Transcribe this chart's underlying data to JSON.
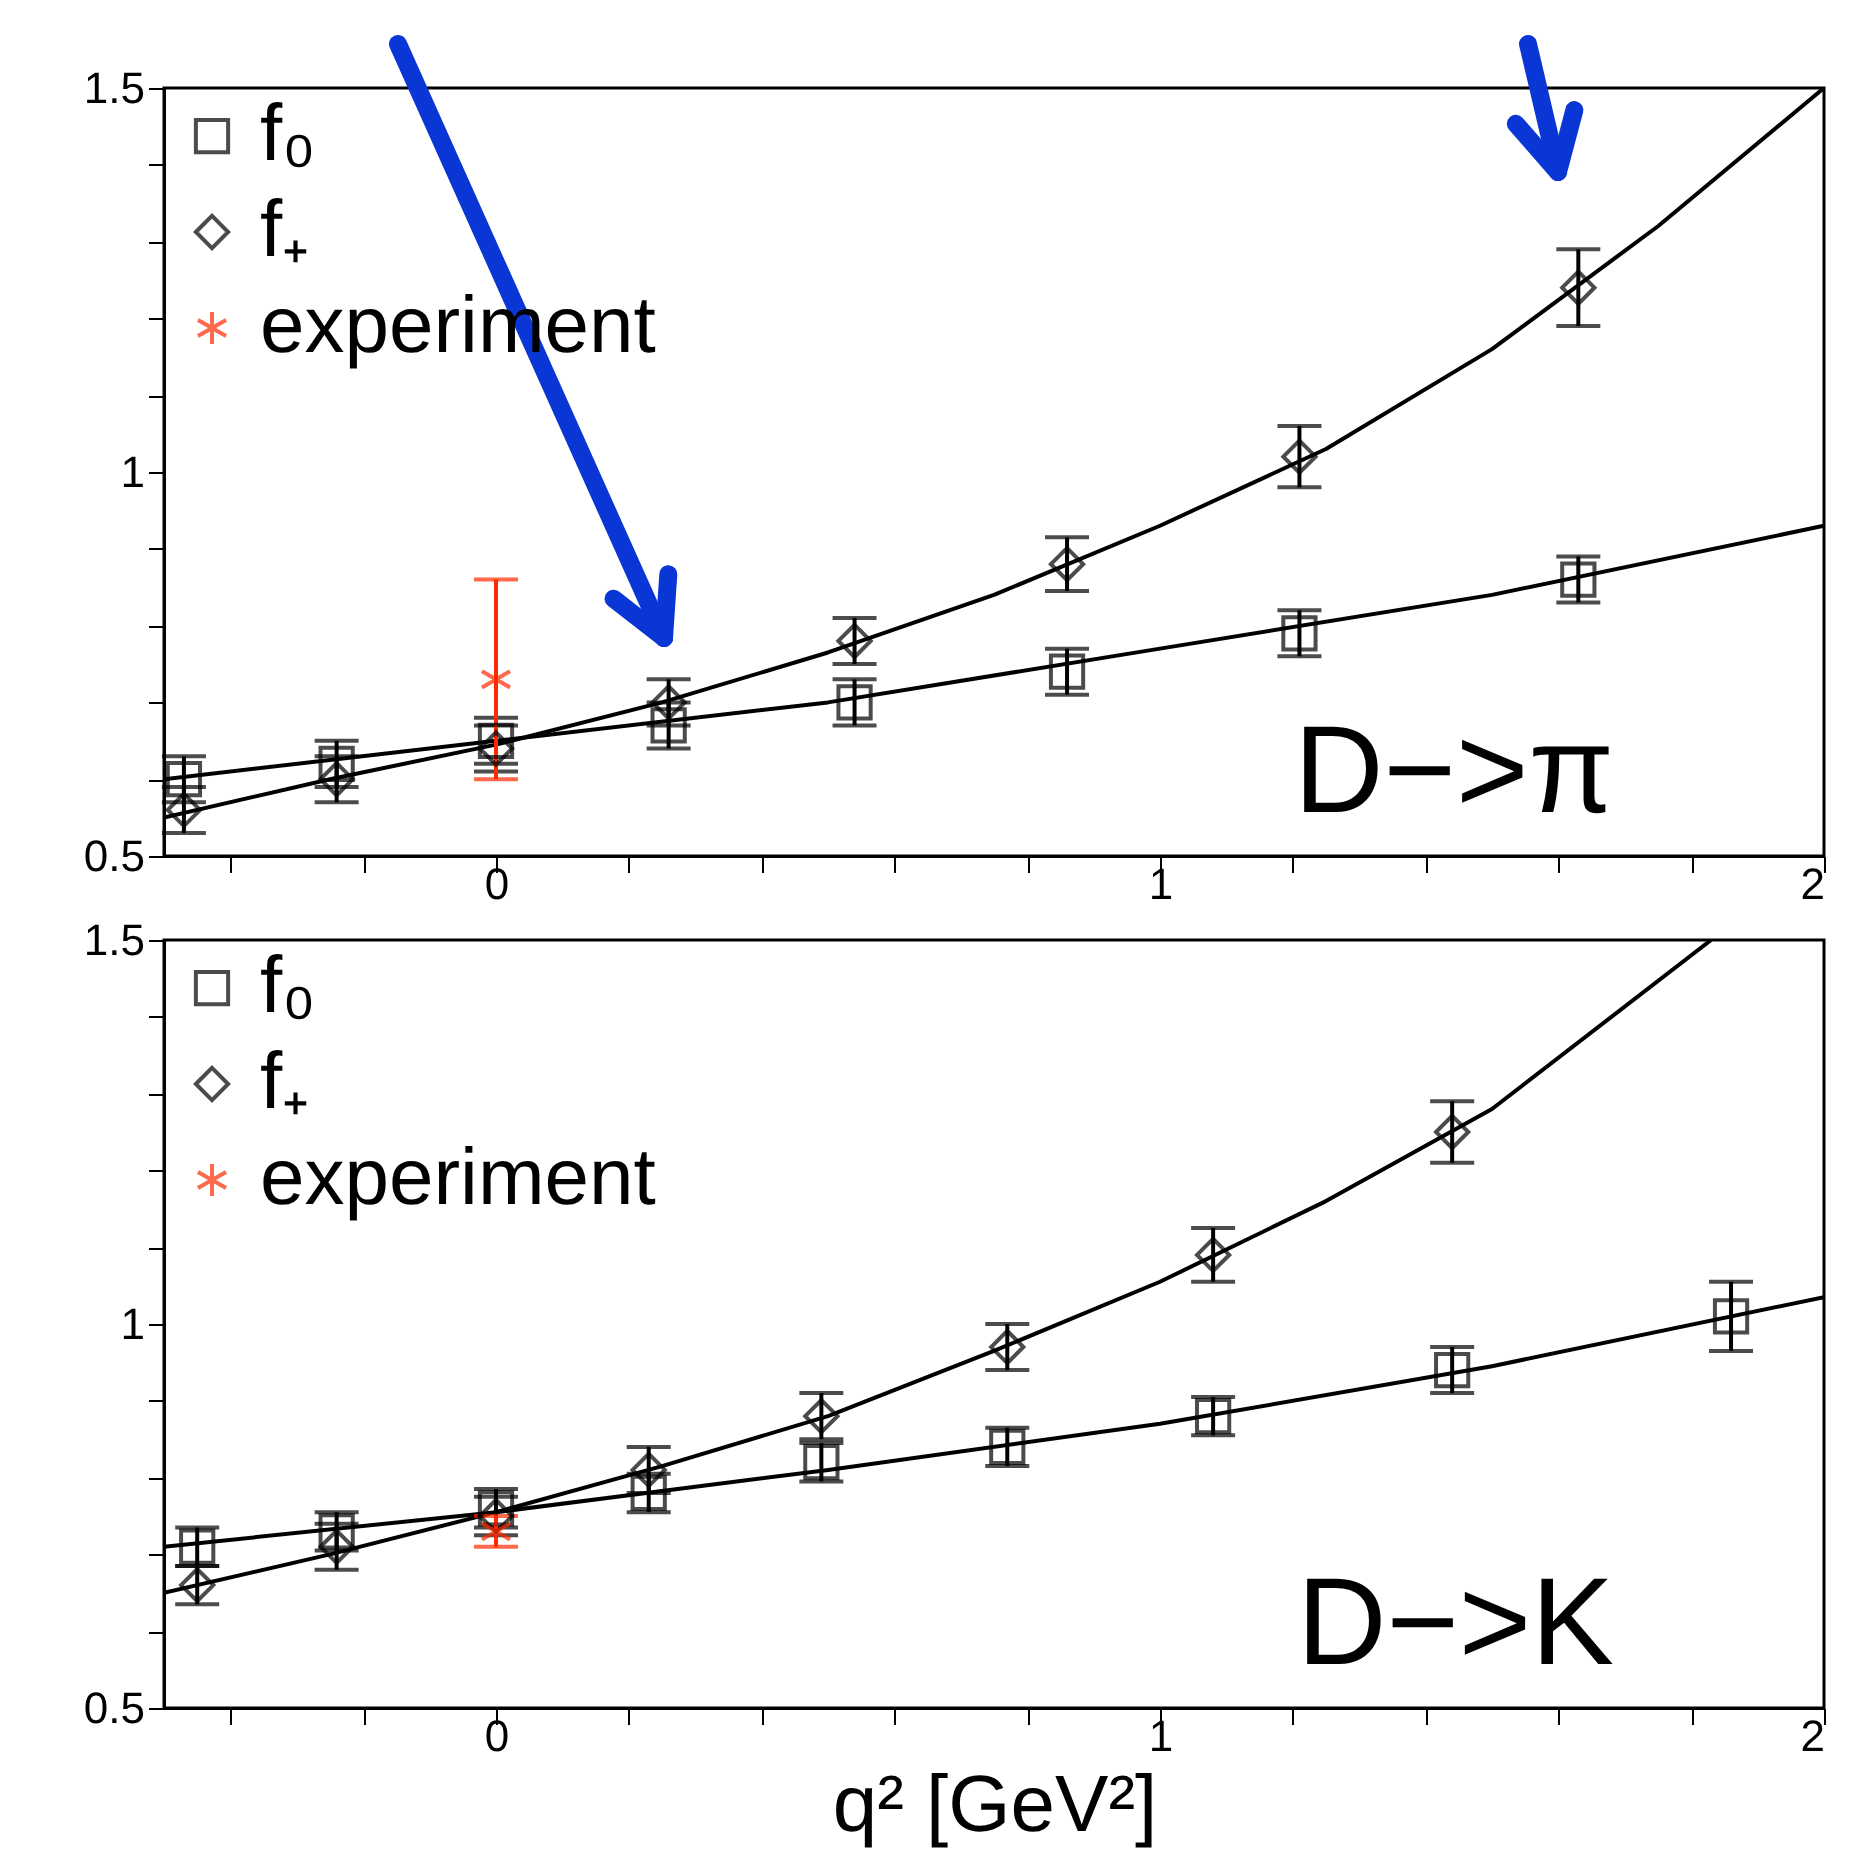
{
  "chart_data": [
    {
      "type": "scatter",
      "xlim": [
        -0.5,
        2
      ],
      "ylim": [
        0.5,
        1.5
      ],
      "xticks": [
        {
          "value": -0.4,
          "label": null
        },
        {
          "value": -0.2,
          "label": null
        },
        0,
        {
          "value": 0.2,
          "label": null
        },
        {
          "value": 0.4,
          "label": null
        },
        {
          "value": 0.6,
          "label": null
        },
        {
          "value": 0.8,
          "label": null
        },
        1,
        {
          "value": 1.2,
          "label": null
        },
        {
          "value": 1.4,
          "label": null
        },
        {
          "value": 1.6,
          "label": null
        },
        {
          "value": 1.8,
          "label": null
        },
        2
      ],
      "yticks": [
        0.5,
        {
          "value": 0.6,
          "label": null
        },
        {
          "value": 0.7,
          "label": null
        },
        {
          "value": 0.8,
          "label": null
        },
        {
          "value": 0.9,
          "label": null
        },
        1,
        {
          "value": 1.1,
          "label": null
        },
        {
          "value": 1.2,
          "label": null
        },
        {
          "value": 1.3,
          "label": null
        },
        {
          "value": 1.4,
          "label": null
        },
        1.5
      ],
      "legend": "top left",
      "annotations": [
        "D−>π"
      ],
      "series": [
        {
          "name": "f₀",
          "color": "#000000",
          "marker": "square",
          "x": [
            -0.47,
            -0.24,
            0,
            0.26,
            0.54,
            0.86,
            1.21,
            1.63
          ],
          "values": [
            0.6,
            0.62,
            0.65,
            0.67,
            0.7,
            0.74,
            0.79,
            0.86
          ],
          "errors": [
            0.03,
            0.03,
            0.03,
            0.03,
            0.03,
            0.03,
            0.03,
            0.03
          ]
        },
        {
          "name": "f₊",
          "color": "#000000",
          "marker": "diamond",
          "x": [
            -0.47,
            -0.24,
            0,
            0.26,
            0.54,
            0.86,
            1.21,
            1.63
          ],
          "values": [
            0.56,
            0.6,
            0.64,
            0.7,
            0.78,
            0.88,
            1.02,
            1.24
          ],
          "errors": [
            0.03,
            0.03,
            0.03,
            0.03,
            0.03,
            0.035,
            0.04,
            0.05
          ]
        },
        {
          "name": "experiment",
          "color": "#ff2a00",
          "marker": "cross",
          "x": [
            0
          ],
          "values": [
            0.73
          ],
          "errors": [
            [
              0.6,
              0.86
            ]
          ]
        },
        {
          "type": "line",
          "color": "#000000",
          "x": [
            -0.5,
            0,
            0.5,
            1,
            1.5,
            2
          ],
          "values": [
            0.6,
            0.65,
            0.7,
            0.77,
            0.84,
            0.93
          ]
        },
        {
          "type": "line",
          "color": "#000000",
          "x": [
            -0.5,
            -0.25,
            0,
            0.25,
            0.5,
            0.75,
            1,
            1.25,
            1.5,
            1.75,
            2
          ],
          "values": [
            0.55,
            0.6,
            0.645,
            0.7,
            0.765,
            0.84,
            0.93,
            1.03,
            1.16,
            1.32,
            1.5
          ]
        }
      ]
    },
    {
      "type": "scatter",
      "xlim": [
        -0.5,
        2
      ],
      "ylim": [
        0.5,
        1.5
      ],
      "xlabel": "q² [GeV²]",
      "xticks": [
        {
          "value": -0.4,
          "label": null
        },
        {
          "value": -0.2,
          "label": null
        },
        0,
        {
          "value": 0.2,
          "label": null
        },
        {
          "value": 0.4,
          "label": null
        },
        {
          "value": 0.6,
          "label": null
        },
        {
          "value": 0.8,
          "label": null
        },
        1,
        {
          "value": 1.2,
          "label": null
        },
        {
          "value": 1.4,
          "label": null
        },
        {
          "value": 1.6,
          "label": null
        },
        {
          "value": 1.8,
          "label": null
        },
        2
      ],
      "yticks": [
        0.5,
        {
          "value": 0.6,
          "label": null
        },
        {
          "value": 0.7,
          "label": null
        },
        {
          "value": 0.8,
          "label": null
        },
        {
          "value": 0.9,
          "label": null
        },
        1,
        {
          "value": 1.1,
          "label": null
        },
        {
          "value": 1.2,
          "label": null
        },
        {
          "value": 1.3,
          "label": null
        },
        {
          "value": 1.4,
          "label": null
        },
        1.5
      ],
      "legend": "top left",
      "annotations": [
        "D−>K"
      ],
      "series": [
        {
          "name": "f₀",
          "color": "#000000",
          "marker": "square",
          "x": [
            -0.45,
            -0.24,
            0,
            0.23,
            0.49,
            0.77,
            1.08,
            1.44,
            1.86
          ],
          "values": [
            0.71,
            0.73,
            0.76,
            0.78,
            0.82,
            0.84,
            0.88,
            0.94,
            1.01
          ],
          "errors": [
            0.025,
            0.025,
            0.025,
            0.025,
            0.025,
            0.025,
            0.025,
            0.03,
            0.045
          ]
        },
        {
          "name": "f₊",
          "color": "#000000",
          "marker": "diamond",
          "x": [
            -0.45,
            -0.24,
            0,
            0.23,
            0.49,
            0.77,
            1.08,
            1.44
          ],
          "values": [
            0.66,
            0.71,
            0.75,
            0.81,
            0.88,
            0.97,
            1.09,
            1.25
          ],
          "errors": [
            0.025,
            0.03,
            0.025,
            0.03,
            0.03,
            0.03,
            0.035,
            0.04
          ]
        },
        {
          "name": "experiment",
          "color": "#ff2a00",
          "marker": "cross",
          "x": [
            0
          ],
          "values": [
            0.73
          ],
          "errors": [
            0.02
          ]
        },
        {
          "type": "line",
          "color": "#000000",
          "x": [
            -0.5,
            0,
            0.5,
            1,
            1.5,
            2
          ],
          "values": [
            0.71,
            0.755,
            0.81,
            0.87,
            0.945,
            1.035
          ]
        },
        {
          "type": "line",
          "color": "#000000",
          "x": [
            -0.5,
            -0.25,
            0,
            0.25,
            0.5,
            0.75,
            1,
            1.25,
            1.5,
            1.83
          ],
          "values": [
            0.65,
            0.7,
            0.755,
            0.815,
            0.88,
            0.965,
            1.055,
            1.16,
            1.28,
            1.5
          ]
        }
      ]
    }
  ]
}
